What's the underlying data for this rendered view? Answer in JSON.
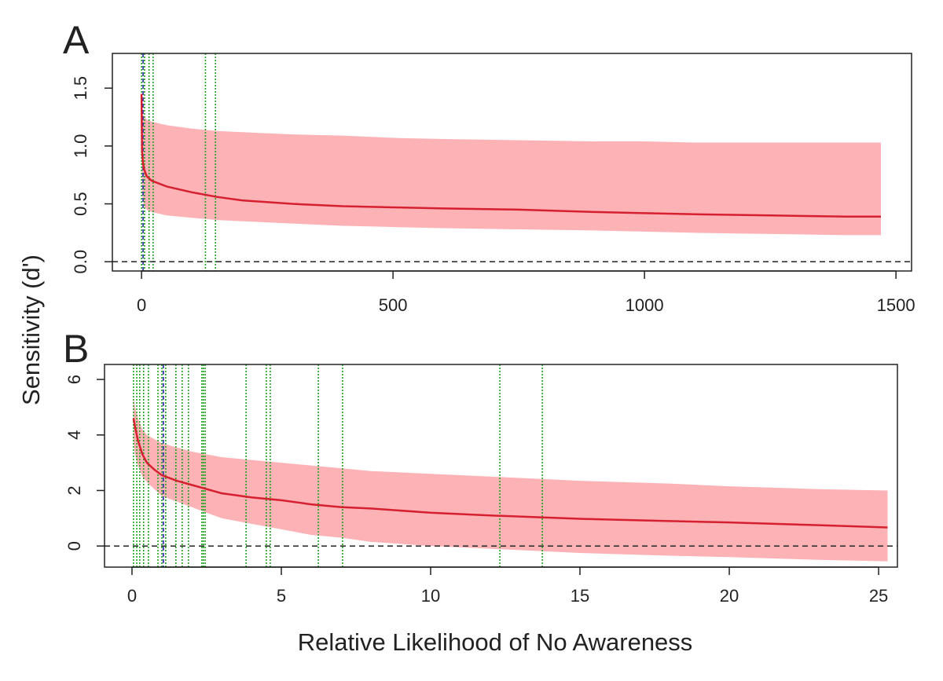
{
  "chart_data": [
    {
      "type": "line",
      "title": "A",
      "ylabel": "Sensitivity (d')",
      "x": [
        0,
        1,
        3,
        5,
        10,
        20,
        50,
        100,
        150,
        200,
        300,
        400,
        500,
        600,
        750,
        900,
        1000,
        1100,
        1250,
        1400,
        1470
      ],
      "series": [
        {
          "color": "#d62030",
          "values": [
            1.45,
            0.95,
            0.85,
            0.8,
            0.74,
            0.7,
            0.65,
            0.6,
            0.56,
            0.53,
            0.5,
            0.48,
            0.47,
            0.46,
            0.45,
            0.43,
            0.42,
            0.41,
            0.4,
            0.39,
            0.39
          ]
        }
      ],
      "band": {
        "color": "#fdb2b6",
        "upper": [
          1.45,
          1.3,
          1.27,
          1.25,
          1.23,
          1.21,
          1.18,
          1.15,
          1.13,
          1.12,
          1.1,
          1.09,
          1.07,
          1.06,
          1.05,
          1.04,
          1.04,
          1.03,
          1.03,
          1.03,
          1.03
        ],
        "lower": [
          0.9,
          0.6,
          0.52,
          0.48,
          0.45,
          0.43,
          0.4,
          0.38,
          0.36,
          0.35,
          0.33,
          0.31,
          0.3,
          0.29,
          0.28,
          0.27,
          0.26,
          0.25,
          0.24,
          0.23,
          0.23
        ]
      },
      "vlines": {
        "color": "#1fa31f",
        "x": [
          0,
          6,
          15,
          23,
          127,
          147
        ]
      },
      "vlines_blue": {
        "color": "#2a2ab0",
        "x": [
          3
        ]
      },
      "hline": {
        "y": 0,
        "color": "#333333"
      },
      "xlim": [
        -58,
        1531
      ],
      "ylim": [
        -0.08,
        1.8
      ],
      "xticks": [
        0,
        500,
        1000,
        1500
      ],
      "yticks": [
        {
          "value": 0,
          "label": "0.0"
        },
        0.5,
        {
          "value": 1,
          "label": "1.0"
        },
        1.5
      ]
    },
    {
      "type": "line",
      "title": "B",
      "xlabel": "Relative Likelihood of No Awareness",
      "x": [
        0.05,
        0.1,
        0.2,
        0.35,
        0.5,
        0.75,
        1,
        1.5,
        2,
        2.5,
        3,
        4,
        5,
        6,
        7,
        8,
        10,
        12,
        15,
        18,
        20,
        23,
        25.3
      ],
      "series": [
        {
          "color": "#d62030",
          "values": [
            4.6,
            4.3,
            3.8,
            3.3,
            3.0,
            2.75,
            2.55,
            2.35,
            2.2,
            2.05,
            1.9,
            1.75,
            1.65,
            1.5,
            1.4,
            1.35,
            1.2,
            1.1,
            0.98,
            0.9,
            0.85,
            0.75,
            0.67
          ]
        }
      ],
      "band": {
        "color": "#fdb2b6",
        "upper": [
          5.4,
          5.0,
          4.6,
          4.2,
          4.0,
          3.85,
          3.7,
          3.55,
          3.4,
          3.3,
          3.2,
          3.1,
          3.0,
          2.9,
          2.8,
          2.7,
          2.6,
          2.5,
          2.35,
          2.25,
          2.15,
          2.05,
          2.0
        ],
        "lower": [
          3.8,
          3.3,
          2.9,
          2.5,
          2.3,
          2.05,
          1.8,
          1.6,
          1.4,
          1.2,
          1.0,
          0.8,
          0.6,
          0.4,
          0.3,
          0.15,
          0.0,
          -0.1,
          -0.25,
          -0.35,
          -0.4,
          -0.5,
          -0.55
        ]
      },
      "vlines": {
        "color": "#1fa31f",
        "x": [
          0.05,
          0.16,
          0.26,
          0.39,
          0.55,
          0.87,
          1.0,
          1.13,
          1.47,
          1.68,
          1.89,
          2.34,
          2.39,
          2.45,
          3.82,
          4.5,
          4.63,
          6.24,
          7.05,
          12.32,
          13.74
        ]
      },
      "vlines_blue": {
        "color": "#2a2ab0",
        "x": [
          1.05
        ]
      },
      "hline": {
        "y": 0,
        "color": "#333333"
      },
      "xlim": [
        -0.92,
        25.63
      ],
      "ylim": [
        -0.76,
        6.54
      ],
      "xticks": [
        0,
        5,
        10,
        15,
        20,
        25
      ],
      "yticks": [
        0,
        2,
        4,
        6
      ]
    }
  ]
}
